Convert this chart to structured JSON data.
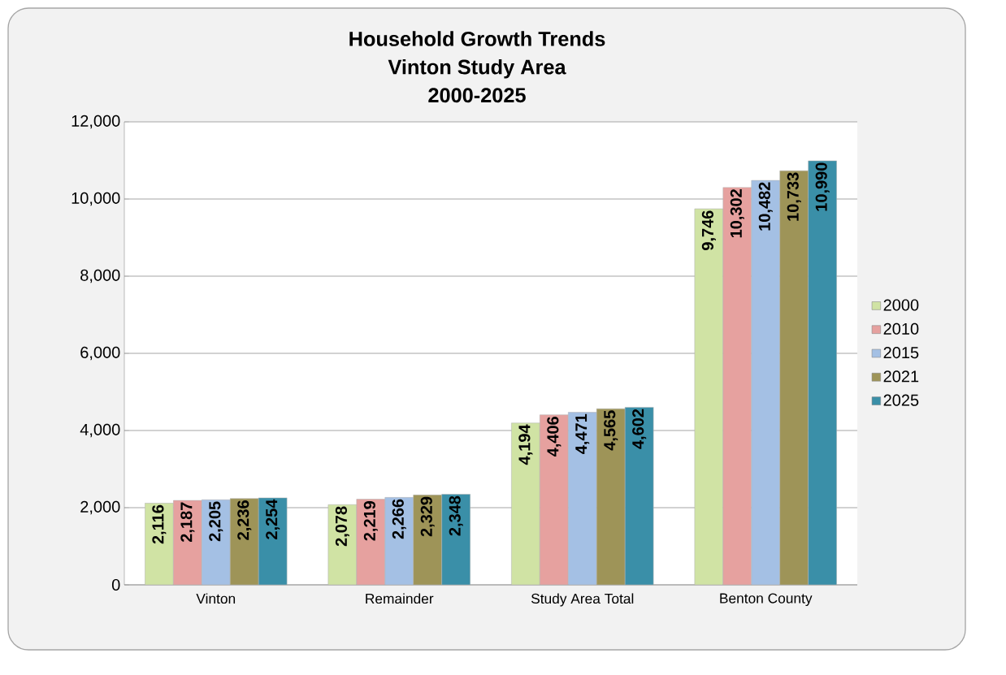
{
  "chart_data": {
    "type": "bar",
    "title": "Household Growth Trends",
    "subtitle": "Vinton Study Area\n2000-2025",
    "categories": [
      "Vinton",
      "Remainder",
      "Study Area Total",
      "Benton County"
    ],
    "series": [
      {
        "name": "2000",
        "color": "#d0e3a4",
        "values": [
          2116,
          2078,
          4194,
          9746
        ],
        "value_labels": [
          "2,116",
          "2,078",
          "4,194",
          "9,746"
        ]
      },
      {
        "name": "2010",
        "color": "#e6a19f",
        "values": [
          2187,
          2219,
          4406,
          10302
        ],
        "value_labels": [
          "2,187",
          "2,219",
          "4,406",
          "10,302"
        ]
      },
      {
        "name": "2015",
        "color": "#a4c0e4",
        "values": [
          2205,
          2266,
          4471,
          10482
        ],
        "value_labels": [
          "2,205",
          "2,266",
          "4,471",
          "10,482"
        ]
      },
      {
        "name": "2021",
        "color": "#9e9458",
        "values": [
          2236,
          2329,
          4565,
          10733
        ],
        "value_labels": [
          "2,236",
          "2,329",
          "4,565",
          "10,733"
        ]
      },
      {
        "name": "2025",
        "color": "#3a8fa8",
        "values": [
          2254,
          2348,
          4602,
          10990
        ],
        "value_labels": [
          "2,254",
          "2,348",
          "4,602",
          "10,990"
        ]
      }
    ],
    "ylim": [
      0,
      12000
    ],
    "yticks": [
      {
        "value": 0,
        "label": "0"
      },
      {
        "value": 2000,
        "label": "2,000"
      },
      {
        "value": 4000,
        "label": "4,000"
      },
      {
        "value": 6000,
        "label": "6,000"
      },
      {
        "value": 8000,
        "label": "8,000"
      },
      {
        "value": 10000,
        "label": "10,000"
      },
      {
        "value": 12000,
        "label": "12,000"
      }
    ],
    "grid": "y",
    "legend": "right"
  }
}
